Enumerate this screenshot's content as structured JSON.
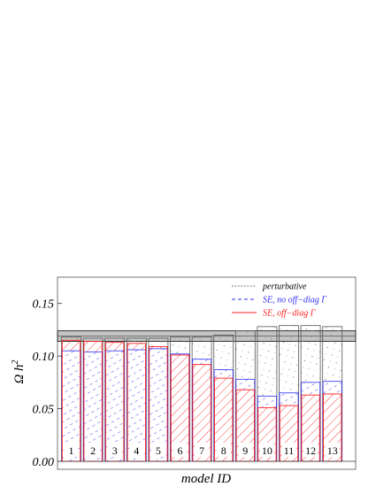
{
  "chart_data": {
    "type": "bar",
    "xlabel": "model ID",
    "ylabel": "Ω h",
    "ylabel_sup": "2",
    "ylim": [
      0,
      0.175
    ],
    "yticks": [
      0.0,
      0.05,
      0.1,
      0.15
    ],
    "ytick_labels": [
      "0.00",
      "0.05",
      "0.10",
      "0.15"
    ],
    "categories": [
      "1",
      "2",
      "3",
      "4",
      "5",
      "6",
      "7",
      "8",
      "9",
      "10",
      "11",
      "12",
      "13"
    ],
    "observed_band": {
      "low": 0.114,
      "high": 0.124
    },
    "legend_position": "top-right",
    "series": [
      {
        "name": "perturbative",
        "style": "dotted",
        "color": "#555555",
        "values": [
          0.118,
          0.117,
          0.117,
          0.117,
          0.117,
          0.118,
          0.118,
          0.12,
          0.124,
          0.128,
          0.129,
          0.129,
          0.128
        ]
      },
      {
        "name": "SE, no off−diag Γ",
        "style": "dashed",
        "color": "#2d2df5",
        "values": [
          0.105,
          0.104,
          0.105,
          0.106,
          0.107,
          0.102,
          0.097,
          0.087,
          0.078,
          0.062,
          0.065,
          0.075,
          0.076
        ]
      },
      {
        "name": "SE, off−diag Γ",
        "style": "solid",
        "color": "#ff2020",
        "values": [
          0.115,
          0.114,
          0.113,
          0.112,
          0.109,
          0.101,
          0.092,
          0.079,
          0.068,
          0.051,
          0.053,
          0.063,
          0.064
        ]
      }
    ]
  }
}
